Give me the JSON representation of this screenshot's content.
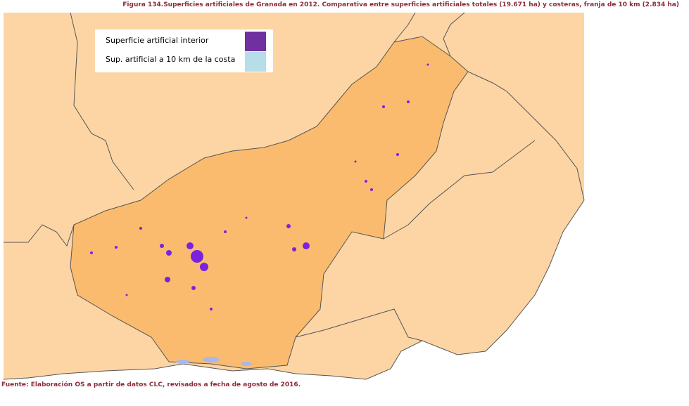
{
  "title": "Figura 134.Superficies artificiales de Granada en 2012. Comparativa entre superficies artificiales totales (19.671 ha) y costeras, franja de 10 km (2.834 ha)",
  "legend": {
    "items": [
      {
        "label": "Superficie artificial interior",
        "color": "#7030a0"
      },
      {
        "label": "Sup. artificial a 10 km de la costa",
        "color": "#b7dde8"
      }
    ]
  },
  "source": "Fuente: Elaboración OS a partir de datos CLC, revisados a fecha de agosto de 2016."
}
